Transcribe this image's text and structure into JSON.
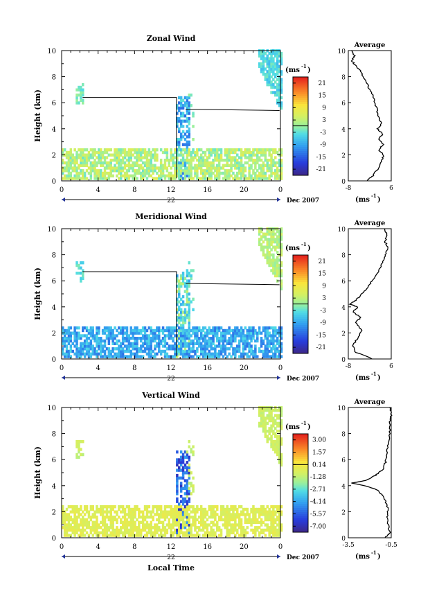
{
  "chart_data": [
    {
      "type": "heatmap",
      "title": "Zonal Wind",
      "ylabel": "Height (km)",
      "ylim": [
        0,
        10
      ],
      "yticks": [
        "0",
        "2",
        "4",
        "6",
        "8",
        "10"
      ],
      "xticks": [
        "0",
        "4",
        "8",
        "12",
        "16",
        "20",
        "0"
      ],
      "xlim_hours": [
        0,
        24
      ],
      "date_day": "22",
      "date_label": "Dec 2007",
      "colorbar_unit": "(ms",
      "colorbar_unit_sup": "-1",
      "colorbar_unit_end": ")",
      "colorbar_ticks": [
        "21",
        "15",
        "9",
        "3",
        "-3",
        "-9",
        "-15",
        "-21"
      ],
      "colorbar_range": [
        -24,
        24
      ],
      "avg_title": "Average",
      "avg_xticks": [
        "-8",
        "6"
      ],
      "avg_xlim": [
        -8,
        6
      ],
      "avg_unit": "(ms",
      "avg_unit_sup": "-1",
      "avg_unit_end": ")",
      "avg_profile": [
        [
          -2,
          0
        ],
        [
          0,
          0.4
        ],
        [
          1.5,
          0.9
        ],
        [
          2.5,
          1.3
        ],
        [
          3.2,
          1.7
        ],
        [
          3.4,
          2.0
        ],
        [
          2.0,
          2.4
        ],
        [
          3.5,
          2.8
        ],
        [
          1.8,
          3.2
        ],
        [
          3.2,
          3.6
        ],
        [
          1.5,
          4.0
        ],
        [
          2.8,
          4.4
        ],
        [
          1.6,
          5.0
        ],
        [
          1.2,
          5.6
        ],
        [
          0.5,
          6.2
        ],
        [
          -0.5,
          6.8
        ],
        [
          -1.8,
          7.4
        ],
        [
          -3.2,
          8.0
        ],
        [
          -4.0,
          8.4
        ],
        [
          -5.5,
          8.8
        ],
        [
          -6.8,
          9.2
        ],
        [
          -6.0,
          9.6
        ],
        [
          -7.0,
          10.0
        ]
      ]
    },
    {
      "type": "heatmap",
      "title": "Meridional Wind",
      "ylabel": "Height (km)",
      "ylim": [
        0,
        10
      ],
      "yticks": [
        "0",
        "2",
        "4",
        "6",
        "8",
        "10"
      ],
      "xticks": [
        "0",
        "4",
        "8",
        "12",
        "16",
        "20",
        "0"
      ],
      "xlim_hours": [
        0,
        24
      ],
      "date_day": "22",
      "date_label": "Dec 2007",
      "colorbar_unit": "(ms",
      "colorbar_unit_sup": "-1",
      "colorbar_unit_end": ")",
      "colorbar_ticks": [
        "21",
        "15",
        "9",
        "3",
        "-3",
        "-9",
        "-15",
        "-21"
      ],
      "colorbar_range": [
        -24,
        24
      ],
      "avg_title": "Average",
      "avg_xticks": [
        "-8",
        "6"
      ],
      "avg_xlim": [
        -8,
        6
      ],
      "avg_unit": "(ms",
      "avg_unit_sup": "-1",
      "avg_unit_end": ")",
      "avg_profile": [
        [
          0,
          0
        ],
        [
          -5.5,
          0.5
        ],
        [
          -6.5,
          1.0
        ],
        [
          -5.0,
          1.6
        ],
        [
          -3.5,
          2.2
        ],
        [
          -5.5,
          2.8
        ],
        [
          -4.0,
          3.2
        ],
        [
          -6.5,
          3.6
        ],
        [
          -5.0,
          4.0
        ],
        [
          -7.5,
          4.2
        ],
        [
          -5.5,
          4.5
        ],
        [
          -3.5,
          5.0
        ],
        [
          -1.5,
          5.6
        ],
        [
          0.5,
          6.2
        ],
        [
          2.0,
          6.8
        ],
        [
          3.0,
          7.4
        ],
        [
          4.2,
          8.0
        ],
        [
          4.8,
          8.6
        ],
        [
          4.0,
          9.0
        ],
        [
          4.5,
          9.5
        ],
        [
          3.8,
          10.0
        ]
      ]
    },
    {
      "type": "heatmap",
      "title": "Vertical Wind",
      "ylabel": "Height (km)",
      "ylim": [
        0,
        10
      ],
      "yticks": [
        "0",
        "2",
        "4",
        "6",
        "8",
        "10"
      ],
      "xticks": [
        "0",
        "4",
        "8",
        "12",
        "16",
        "20",
        "0"
      ],
      "xlim_hours": [
        0,
        24
      ],
      "date_day": "22",
      "date_label": "Dec 2007",
      "xlabel": "Local Time",
      "colorbar_unit": "(ms",
      "colorbar_unit_sup": "-1",
      "colorbar_unit_end": ")",
      "colorbar_ticks": [
        "3.00",
        "1.57",
        "0.14",
        "-1.28",
        "-2.71",
        "-4.14",
        "-5.57",
        "-7.00"
      ],
      "colorbar_range": [
        -7.7,
        3.7
      ],
      "avg_title": "Average",
      "avg_xticks": [
        "-3.5",
        "-0.5"
      ],
      "avg_xlim": [
        -3.5,
        -0.5
      ],
      "avg_unit": "(ms",
      "avg_unit_sup": "-1",
      "avg_unit_end": ")",
      "avg_profile": [
        [
          -0.9,
          0
        ],
        [
          -0.6,
          0.4
        ],
        [
          -0.7,
          1.0
        ],
        [
          -0.8,
          1.6
        ],
        [
          -0.7,
          2.2
        ],
        [
          -0.9,
          2.8
        ],
        [
          -1.1,
          3.2
        ],
        [
          -1.4,
          3.6
        ],
        [
          -2.0,
          3.9
        ],
        [
          -3.3,
          4.2
        ],
        [
          -2.3,
          4.4
        ],
        [
          -1.6,
          4.8
        ],
        [
          -1.1,
          5.2
        ],
        [
          -0.9,
          5.8
        ],
        [
          -0.8,
          6.4
        ],
        [
          -0.7,
          7.2
        ],
        [
          -0.6,
          8.0
        ],
        [
          -0.6,
          8.8
        ],
        [
          -0.5,
          9.4
        ],
        [
          -0.6,
          10.0
        ]
      ]
    }
  ]
}
